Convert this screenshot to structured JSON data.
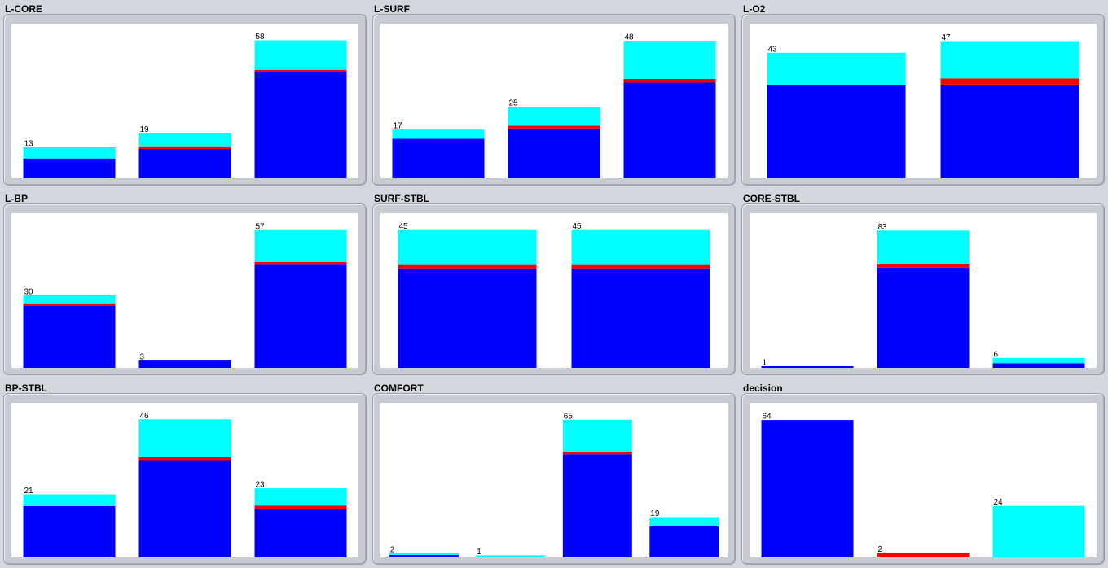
{
  "colors": {
    "segment_a": "#0000ff",
    "segment_b": "#ff0000",
    "segment_c": "#00ffff"
  },
  "chart_data": [
    {
      "type": "bar",
      "stacked": true,
      "title": "L-CORE",
      "ylim": [
        0,
        65
      ],
      "bars": [
        {
          "total": 13,
          "segments": [
            8.3,
            0.0,
            4.7
          ]
        },
        {
          "total": 19,
          "segments": [
            12.3,
            0.8,
            5.9
          ]
        },
        {
          "total": 58,
          "segments": [
            44.5,
            1.1,
            12.4
          ]
        }
      ]
    },
    {
      "type": "bar",
      "stacked": true,
      "title": "L-SURF",
      "ylim": [
        0,
        54
      ],
      "bars": [
        {
          "total": 17,
          "segments": [
            13.8,
            0.0,
            3.2
          ]
        },
        {
          "total": 25,
          "segments": [
            17.4,
            1.0,
            6.6
          ]
        },
        {
          "total": 48,
          "segments": [
            33.4,
            1.3,
            13.3
          ]
        }
      ]
    },
    {
      "type": "bar",
      "stacked": true,
      "title": "L-O2",
      "ylim": [
        0,
        53
      ],
      "bars": [
        {
          "total": 43,
          "segments": [
            32.1,
            0.0,
            10.9
          ]
        },
        {
          "total": 47,
          "segments": [
            32.1,
            2.1,
            12.8
          ]
        }
      ]
    },
    {
      "type": "bar",
      "stacked": true,
      "title": "L-BP",
      "ylim": [
        0,
        64
      ],
      "bars": [
        {
          "total": 30,
          "segments": [
            25.6,
            1.1,
            3.3
          ]
        },
        {
          "total": 3,
          "segments": [
            3.0,
            0.0,
            0.0
          ]
        },
        {
          "total": 57,
          "segments": [
            42.7,
            1.1,
            13.2
          ]
        }
      ]
    },
    {
      "type": "bar",
      "stacked": true,
      "title": "SURF-STBL",
      "ylim": [
        0,
        50.5
      ],
      "bars": [
        {
          "total": 45,
          "segments": [
            32.5,
            1.1,
            11.4
          ]
        },
        {
          "total": 45,
          "segments": [
            32.5,
            1.1,
            11.4
          ]
        }
      ]
    },
    {
      "type": "bar",
      "stacked": true,
      "title": "CORE-STBL",
      "ylim": [
        0,
        93.5
      ],
      "bars": [
        {
          "total": 1,
          "segments": [
            1.0,
            0.0,
            0.0
          ]
        },
        {
          "total": 83,
          "segments": [
            60.6,
            2.0,
            20.4
          ]
        },
        {
          "total": 6,
          "segments": [
            2.8,
            0.0,
            3.2
          ]
        }
      ]
    },
    {
      "type": "bar",
      "stacked": true,
      "title": "BP-STBL",
      "ylim": [
        0,
        51.5
      ],
      "bars": [
        {
          "total": 21,
          "segments": [
            17.1,
            0.0,
            3.9
          ]
        },
        {
          "total": 46,
          "segments": [
            32.4,
            1.1,
            12.5
          ]
        },
        {
          "total": 23,
          "segments": [
            16.2,
            1.1,
            5.7
          ]
        }
      ]
    },
    {
      "type": "bar",
      "stacked": true,
      "title": "COMFORT",
      "ylim": [
        0,
        73
      ],
      "bars": [
        {
          "total": 2,
          "segments": [
            1.2,
            0.0,
            0.8
          ]
        },
        {
          "total": 1,
          "segments": [
            0.0,
            0.0,
            1.0
          ]
        },
        {
          "total": 65,
          "segments": [
            48.7,
            1.2,
            15.1
          ]
        },
        {
          "total": 19,
          "segments": [
            14.6,
            0.0,
            4.4
          ]
        }
      ]
    },
    {
      "type": "bar",
      "stacked": true,
      "title": "decision",
      "ylim": [
        0,
        72
      ],
      "bars": [
        {
          "total": 64,
          "segments": [
            64.0,
            0.0,
            0.0
          ]
        },
        {
          "total": 2,
          "segments": [
            0.0,
            2.0,
            0.0
          ]
        },
        {
          "total": 24,
          "segments": [
            0.0,
            0.0,
            24.0
          ]
        }
      ]
    }
  ]
}
